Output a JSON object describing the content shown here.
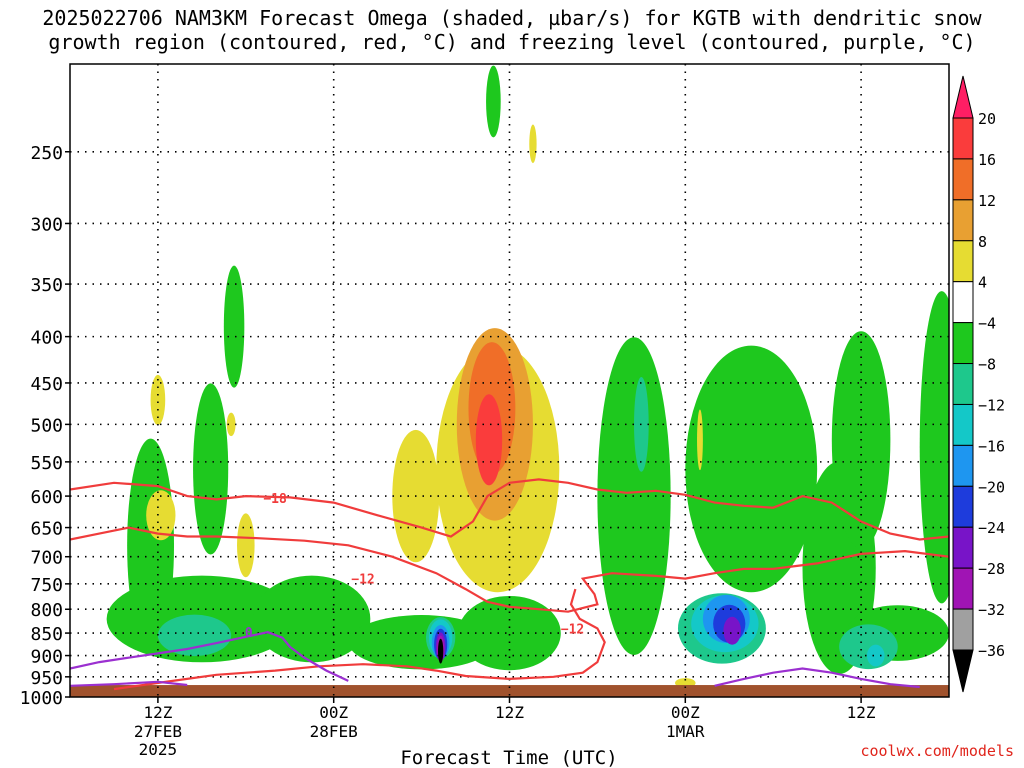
{
  "title": {
    "line1": "2025022706 NAM3KM Forecast Omega (shaded, µbar/s) for KGTB with dendritic snow",
    "line2": "growth region (contoured, red, °C) and freezing level (contoured, purple, °C)"
  },
  "credit": "coolwx.com/models",
  "chart_data": {
    "type": "heatmap",
    "title": "2025022706 NAM3KM Forecast Omega (shaded, µbar/s) for KGTB with dendritic snow growth region (contoured, red, °C) and freezing level (contoured, purple, °C)",
    "xlabel": "Forecast Time (UTC)",
    "ylabel": "",
    "y_scale": "log",
    "y_inverted": true,
    "ylim": [
      1000,
      200
    ],
    "xlim": [
      6,
      54
    ],
    "x_unit": "hours since 2025-02-27 00Z",
    "y_ticks": [
      250,
      300,
      350,
      400,
      450,
      500,
      550,
      600,
      650,
      700,
      750,
      800,
      850,
      900,
      950,
      1000
    ],
    "x_ticks": [
      {
        "hour": 12,
        "label": "12Z",
        "date": "27FEB",
        "year": "2025"
      },
      {
        "hour": 24,
        "label": "00Z",
        "date": "28FEB",
        "year": ""
      },
      {
        "hour": 36,
        "label": "12Z",
        "date": "",
        "year": ""
      },
      {
        "hour": 48,
        "label": "00Z",
        "date": "1MAR",
        "year": ""
      },
      {
        "hour": 60,
        "label": "12Z",
        "date": "",
        "year": ""
      }
    ],
    "grid": true,
    "colorbar": {
      "levels": [
        -36,
        -32,
        -28,
        -24,
        -20,
        -16,
        -12,
        -8,
        -4,
        4,
        8,
        12,
        16,
        20
      ],
      "labels": [
        "20",
        "16",
        "12",
        "8",
        "4",
        "−4",
        "−8",
        "−12",
        "−16",
        "−20",
        "−24",
        "−28",
        "−32",
        "−36"
      ],
      "colors": [
        "#ff1e64",
        "#fa3c3c",
        "#f06e28",
        "#e8a032",
        "#e6dc32",
        "#ffffff",
        "#1ec81e",
        "#1ec88c",
        "#14c8c8",
        "#1e96f0",
        "#1e3cdc",
        "#7814c8",
        "#a014b4",
        "#a0a0a0",
        "#000000"
      ]
    },
    "omega_regions": [
      {
        "value": -6,
        "x": 44.5,
        "p": 600,
        "rx": 2.5,
        "rp": 230
      },
      {
        "value": -6,
        "x": 52.5,
        "p": 560,
        "rx": 4.5,
        "rp": 170
      },
      {
        "value": -6,
        "x": 58.5,
        "p": 720,
        "rx": 2.5,
        "rp": 190
      },
      {
        "value": -6,
        "x": 60.0,
        "p": 520,
        "rx": 2.0,
        "rp": 140
      },
      {
        "value": -6,
        "x": 15.0,
        "p": 820,
        "rx": 6.5,
        "rp": 90
      },
      {
        "value": -6,
        "x": 11.5,
        "p": 680,
        "rx": 1.6,
        "rp": 180
      },
      {
        "value": -6,
        "x": 15.6,
        "p": 560,
        "rx": 1.2,
        "rp": 120
      },
      {
        "value": -6,
        "x": 22.5,
        "p": 820,
        "rx": 4.0,
        "rp": 90
      },
      {
        "value": -6,
        "x": 30.0,
        "p": 870,
        "rx": 5.0,
        "rp": 60
      },
      {
        "value": -6,
        "x": 36.0,
        "p": 850,
        "rx": 3.5,
        "rp": 80
      },
      {
        "value": -6,
        "x": 62.5,
        "p": 850,
        "rx": 3.5,
        "rp": 60
      },
      {
        "value": -6,
        "x": 17.2,
        "p": 390,
        "rx": 0.7,
        "rp": 60
      },
      {
        "value": -6,
        "x": 34.9,
        "p": 220,
        "rx": 0.5,
        "rp": 20
      },
      {
        "value": -6,
        "x": 65.5,
        "p": 530,
        "rx": 1.5,
        "rp": 200
      },
      {
        "value": 5,
        "x": 35.2,
        "p": 560,
        "rx": 4.2,
        "rp": 170
      },
      {
        "value": 5,
        "x": 29.6,
        "p": 600,
        "rx": 1.6,
        "rp": 100
      },
      {
        "value": 5,
        "x": 12.0,
        "p": 470,
        "rx": 0.5,
        "rp": 30
      },
      {
        "value": 5,
        "x": 12.2,
        "p": 630,
        "rx": 1.0,
        "rp": 40
      },
      {
        "value": 5,
        "x": 18.0,
        "p": 680,
        "rx": 0.6,
        "rp": 55
      },
      {
        "value": 5,
        "x": 17.0,
        "p": 500,
        "rx": 0.3,
        "rp": 15
      },
      {
        "value": 5,
        "x": 49.0,
        "p": 520,
        "rx": 0.2,
        "rp": 40
      },
      {
        "value": 5,
        "x": 48.0,
        "p": 965,
        "rx": 0.7,
        "rp": 12
      },
      {
        "value": 5,
        "x": 37.6,
        "p": 245,
        "rx": 0.25,
        "rp": 12
      },
      {
        "value": 10,
        "x": 35.0,
        "p": 500,
        "rx": 2.6,
        "rp": 120
      },
      {
        "value": 14,
        "x": 34.8,
        "p": 480,
        "rx": 1.6,
        "rp": 80
      },
      {
        "value": 18,
        "x": 34.6,
        "p": 520,
        "rx": 0.9,
        "rp": 60
      },
      {
        "value": -10,
        "x": 50.5,
        "p": 840,
        "rx": 3.0,
        "rp": 75
      },
      {
        "value": -10,
        "x": 60.5,
        "p": 880,
        "rx": 2.0,
        "rp": 50
      },
      {
        "value": -10,
        "x": 14.5,
        "p": 855,
        "rx": 2.5,
        "rp": 45
      },
      {
        "value": -10,
        "x": 45.0,
        "p": 500,
        "rx": 0.5,
        "rp": 60
      },
      {
        "value": -10,
        "x": 31.3,
        "p": 860,
        "rx": 1.0,
        "rp": 45
      },
      {
        "value": -14,
        "x": 50.7,
        "p": 830,
        "rx": 2.3,
        "rp": 60
      },
      {
        "value": -14,
        "x": 31.3,
        "p": 860,
        "rx": 0.8,
        "rp": 40
      },
      {
        "value": -14,
        "x": 61.0,
        "p": 900,
        "rx": 0.6,
        "rp": 25
      },
      {
        "value": -18,
        "x": 50.8,
        "p": 820,
        "rx": 1.6,
        "rp": 50
      },
      {
        "value": -18,
        "x": 31.3,
        "p": 870,
        "rx": 0.6,
        "rp": 38
      },
      {
        "value": -22,
        "x": 51.0,
        "p": 830,
        "rx": 1.1,
        "rp": 40
      },
      {
        "value": -22,
        "x": 31.3,
        "p": 875,
        "rx": 0.45,
        "rp": 35
      },
      {
        "value": -26,
        "x": 51.2,
        "p": 845,
        "rx": 0.6,
        "rp": 30
      },
      {
        "value": -26,
        "x": 31.3,
        "p": 880,
        "rx": 0.33,
        "rp": 32
      },
      {
        "value": -30,
        "x": 31.3,
        "p": 885,
        "rx": 0.25,
        "rp": 30
      },
      {
        "value": -40,
        "x": 31.3,
        "p": 890,
        "rx": 0.18,
        "rp": 28
      }
    ],
    "contours": [
      {
        "name": "-18",
        "color": "#f03c3c",
        "label_at": 1,
        "points": [
          [
            6,
            590
          ],
          [
            9,
            580
          ],
          [
            12,
            585
          ],
          [
            14,
            600
          ],
          [
            16,
            605
          ],
          [
            18,
            600
          ],
          [
            21,
            602
          ],
          [
            24,
            610
          ],
          [
            27,
            630
          ],
          [
            30,
            650
          ],
          [
            32,
            665
          ],
          [
            33.5,
            640
          ],
          [
            34.5,
            600
          ],
          [
            36,
            580
          ],
          [
            38,
            575
          ],
          [
            40,
            580
          ],
          [
            42,
            590
          ],
          [
            44,
            595
          ],
          [
            46,
            592
          ],
          [
            48,
            598
          ],
          [
            50,
            610
          ],
          [
            52,
            615
          ],
          [
            54,
            618
          ],
          [
            56,
            600
          ],
          [
            58,
            610
          ],
          [
            60,
            640
          ],
          [
            62,
            660
          ],
          [
            64,
            670
          ],
          [
            66,
            665
          ]
        ],
        "label": "−18",
        "label_x": 20,
        "label_p": 603
      },
      {
        "name": "-18b",
        "color": "#f03c3c",
        "label_at": 0,
        "points": [
          [
            6,
            670
          ],
          [
            8,
            660
          ],
          [
            10,
            650
          ],
          [
            12,
            660
          ],
          [
            14,
            665
          ],
          [
            16,
            665
          ],
          [
            19,
            668
          ],
          [
            22,
            672
          ],
          [
            25,
            680
          ],
          [
            28,
            700
          ],
          [
            31,
            730
          ],
          [
            33,
            760
          ],
          [
            34.5,
            785
          ],
          [
            36,
            795
          ],
          [
            38,
            800
          ],
          [
            40,
            805
          ],
          [
            42,
            790
          ],
          [
            41.8,
            770
          ],
          [
            41,
            740
          ],
          [
            43,
            730
          ],
          [
            46,
            735
          ],
          [
            48,
            740
          ],
          [
            50,
            730
          ],
          [
            52,
            722
          ],
          [
            54,
            722
          ],
          [
            57,
            712
          ],
          [
            60,
            695
          ],
          [
            63,
            690
          ],
          [
            66,
            700
          ]
        ],
        "label": "−12",
        "label_x": 26,
        "label_p": 740
      },
      {
        "name": "-12c",
        "color": "#f03c3c",
        "label_at": 0,
        "points": [
          [
            9,
            980
          ],
          [
            13,
            960
          ],
          [
            16,
            945
          ],
          [
            20,
            935
          ],
          [
            23,
            925
          ],
          [
            26,
            920
          ],
          [
            29,
            925
          ],
          [
            31,
            935
          ],
          [
            33,
            948
          ],
          [
            36,
            955
          ],
          [
            39,
            950
          ],
          [
            41,
            940
          ],
          [
            42,
            915
          ],
          [
            42.5,
            870
          ],
          [
            42,
            840
          ],
          [
            40.8,
            820
          ],
          [
            40.2,
            790
          ],
          [
            40.5,
            760
          ]
        ],
        "label": "−12",
        "label_x": 40.3,
        "label_p": 840
      },
      {
        "name": "freeze",
        "color": "#9b30d0",
        "label_at": 0,
        "points": [
          [
            6,
            930
          ],
          [
            8,
            915
          ],
          [
            10,
            905
          ],
          [
            12,
            895
          ],
          [
            14,
            885
          ],
          [
            16,
            872
          ],
          [
            18,
            858
          ],
          [
            19.5,
            848
          ],
          [
            20.5,
            860
          ],
          [
            21,
            880
          ],
          [
            22,
            905
          ],
          [
            23.5,
            935
          ],
          [
            25,
            960
          ]
        ],
        "label": "0",
        "label_x": 18.2,
        "label_p": 848
      },
      {
        "name": "freeze2",
        "color": "#9b30d0",
        "label_at": 0,
        "points": [
          [
            6,
            972
          ],
          [
            9,
            968
          ],
          [
            12,
            962
          ],
          [
            14,
            970
          ]
        ],
        "label": "",
        "label_x": 0,
        "label_p": 0
      },
      {
        "name": "freeze3",
        "color": "#9b30d0",
        "label_at": 0,
        "points": [
          [
            50,
            972
          ],
          [
            52,
            955
          ],
          [
            54,
            940
          ],
          [
            56,
            930
          ],
          [
            58,
            940
          ],
          [
            60,
            955
          ],
          [
            62,
            968
          ],
          [
            64,
            975
          ]
        ],
        "label": "",
        "label_x": 0,
        "label_p": 0
      }
    ],
    "surface_pressure": 975
  }
}
